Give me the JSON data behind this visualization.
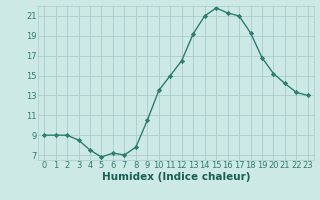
{
  "x": [
    0,
    1,
    2,
    3,
    4,
    5,
    6,
    7,
    8,
    9,
    10,
    11,
    12,
    13,
    14,
    15,
    16,
    17,
    18,
    19,
    20,
    21,
    22,
    23
  ],
  "y": [
    9,
    9,
    9,
    8.5,
    7.5,
    6.8,
    7.2,
    7.0,
    7.8,
    10.5,
    13.5,
    15.0,
    16.5,
    19.2,
    21.0,
    21.8,
    21.3,
    21.0,
    19.3,
    16.8,
    15.2,
    14.2,
    13.3,
    13.0
  ],
  "line_color": "#2e7d6e",
  "marker": "D",
  "marker_size": 2.2,
  "bg_color": "#cce9e5",
  "grid_color": "#aacccc",
  "xlabel": "Humidex (Indice chaleur)",
  "xlim": [
    -0.5,
    23.5
  ],
  "ylim": [
    6.5,
    22.0
  ],
  "yticks": [
    7,
    9,
    11,
    13,
    15,
    17,
    19,
    21
  ],
  "xticks": [
    0,
    1,
    2,
    3,
    4,
    5,
    6,
    7,
    8,
    9,
    10,
    11,
    12,
    13,
    14,
    15,
    16,
    17,
    18,
    19,
    20,
    21,
    22,
    23
  ],
  "tick_color": "#2e7d6e",
  "label_color": "#1a5f54",
  "xlabel_fontsize": 7.5,
  "tick_fontsize": 6.0,
  "linewidth": 1.0
}
